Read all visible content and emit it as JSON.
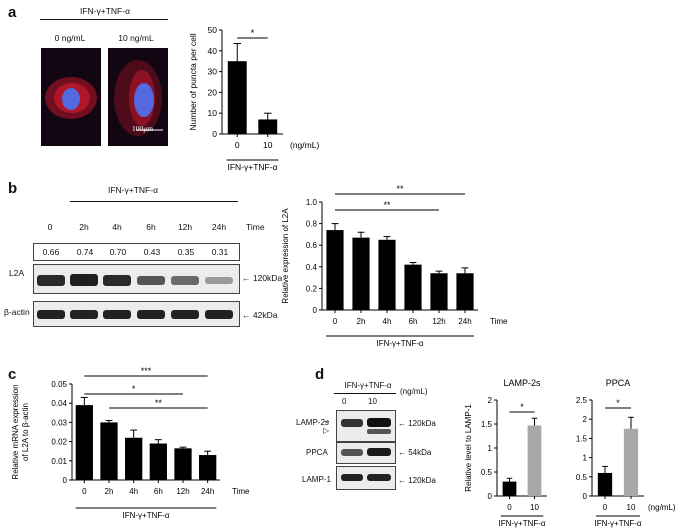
{
  "colors": {
    "bar_dark": "#000000",
    "bar_gray": "#a8a8a8",
    "cell_red": "#c0182c",
    "nucleus_blue": "#5468e0"
  },
  "treatment": "IFN-γ+TNF-α",
  "panel_a": {
    "label": "a",
    "conditions": [
      "0 ng/mL",
      "10 ng/mL"
    ],
    "scale_bar": "100μm"
  },
  "panel_b": {
    "label": "b",
    "times": [
      "0",
      "2h",
      "4h",
      "6h",
      "12h",
      "24h"
    ],
    "time_label": "Time",
    "ratios": [
      "0.66",
      "0.74",
      "0.70",
      "0.43",
      "0.35",
      "0.31"
    ],
    "blots": [
      {
        "name": "L2A",
        "marker": "120kDa"
      },
      {
        "name": "β-actin",
        "marker": "42kDa"
      }
    ]
  },
  "panel_c": {
    "label": "c"
  },
  "panel_d": {
    "label": "d",
    "doses": [
      "0",
      "10"
    ],
    "unit": "(ng/mL)",
    "blots": [
      {
        "name": "LAMP-2s",
        "marker": "120kDa"
      },
      {
        "name": "PPCA",
        "marker": "54kDa"
      },
      {
        "name": "LAMP-1",
        "marker": "120kDa"
      }
    ]
  },
  "chart_data": [
    {
      "id": "a",
      "type": "bar",
      "categories": [
        "0",
        "10"
      ],
      "values": [
        35,
        7
      ],
      "errors": [
        8.5,
        3
      ],
      "ylabel": "Number of puncta per cell",
      "xlabel": "IFN-γ+TNF-α",
      "unit": "(ng/mL)",
      "ylim": [
        0,
        50
      ],
      "yticks": [
        0,
        10,
        20,
        30,
        40,
        50
      ],
      "significance": [
        {
          "from": 0,
          "to": 1,
          "label": "*"
        }
      ]
    },
    {
      "id": "b",
      "type": "bar",
      "categories": [
        "0",
        "2h",
        "4h",
        "6h",
        "12h",
        "24h"
      ],
      "values": [
        0.74,
        0.67,
        0.65,
        0.42,
        0.34,
        0.34
      ],
      "errors": [
        0.06,
        0.05,
        0.03,
        0.02,
        0.02,
        0.05
      ],
      "ylabel": "Relative expression of L2A",
      "xlabel": "IFN-γ+TNF-α",
      "axis_extra": "Time",
      "ylim": [
        0,
        1.0
      ],
      "yticks": [
        "0",
        "0.2",
        "0.4",
        "0.6",
        "0.8",
        "1.0"
      ],
      "significance": [
        {
          "from": 0,
          "to": 5,
          "label": "**"
        },
        {
          "from": 0,
          "to": 4,
          "label": "**"
        }
      ]
    },
    {
      "id": "c",
      "type": "bar",
      "categories": [
        "0",
        "2h",
        "4h",
        "6h",
        "12h",
        "24h"
      ],
      "values": [
        0.039,
        0.03,
        0.022,
        0.019,
        0.0165,
        0.013
      ],
      "errors": [
        0.004,
        0.001,
        0.004,
        0.002,
        0.0006,
        0.002
      ],
      "ylabel": "Relative mRNA expression",
      "ylabel2": "of L2A to β-actin",
      "xlabel": "IFN-γ+TNF-α",
      "axis_extra": "Time",
      "ylim": [
        0,
        0.05
      ],
      "yticks": [
        "0",
        "0.01",
        "0.02",
        "0.03",
        "0.04",
        "0.05"
      ],
      "significance": [
        {
          "from": 0,
          "to": 5,
          "label": "***"
        },
        {
          "from": 0,
          "to": 4,
          "label": "*"
        },
        {
          "from": 1,
          "to": 5,
          "label": "**"
        }
      ]
    },
    {
      "id": "d1",
      "type": "bar",
      "title": "LAMP-2s",
      "categories": [
        "0",
        "10"
      ],
      "values": [
        0.3,
        1.47
      ],
      "errors": [
        0.07,
        0.15
      ],
      "ylabel": "Relative level to LAMP-1",
      "xlabel": "IFN-γ+TNF-α",
      "ylim": [
        0,
        2
      ],
      "yticks": [
        "0",
        "0.5",
        "1",
        "1.5",
        "2"
      ],
      "significance": [
        {
          "from": 0,
          "to": 1,
          "label": "*"
        }
      ]
    },
    {
      "id": "d2",
      "type": "bar",
      "title": "PPCA",
      "categories": [
        "0",
        "10"
      ],
      "values": [
        0.6,
        1.75
      ],
      "errors": [
        0.17,
        0.3
      ],
      "xlabel": "IFN-γ+TNF-α",
      "unit": "(ng/mL)",
      "ylim": [
        0,
        2.5
      ],
      "yticks": [
        "0",
        "0.5",
        "1",
        "1.5",
        "2",
        "2.5"
      ],
      "significance": [
        {
          "from": 0,
          "to": 1,
          "label": "*"
        }
      ]
    }
  ]
}
